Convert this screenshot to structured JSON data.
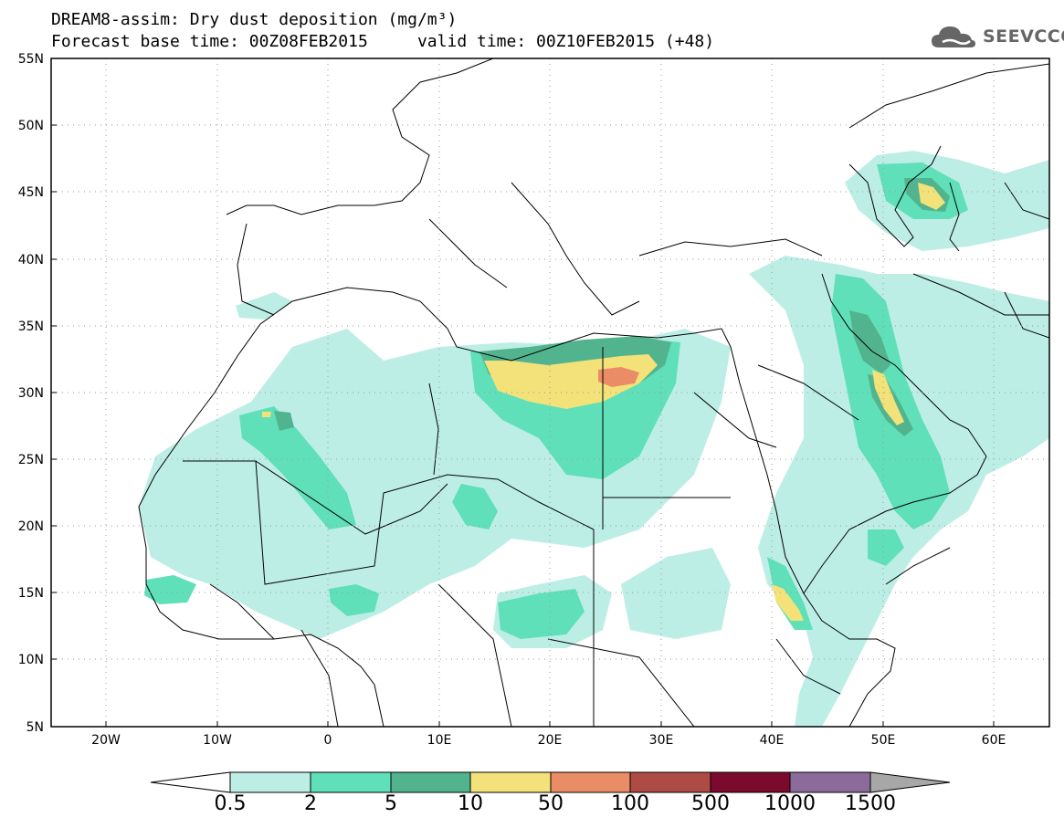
{
  "header": {
    "title_line1": "DREAM8-assim: Dry dust deposition (mg/m³)",
    "title_line2": "Forecast base time: 00Z08FEB2015     valid time: 00Z10FEB2015 (+48)"
  },
  "logo": {
    "text": "SEEVCCC",
    "icon": "cloud-icon"
  },
  "map": {
    "lat_labels": [
      "55N",
      "50N",
      "45N",
      "40N",
      "35N",
      "30N",
      "25N",
      "20N",
      "15N",
      "10N",
      "5N"
    ],
    "lon_labels": [
      "20W",
      "10W",
      "0",
      "10E",
      "20E",
      "30E",
      "40E",
      "50E",
      "60E"
    ]
  },
  "colorbar": {
    "labels": [
      "0.5",
      "2",
      "5",
      "10",
      "50",
      "100",
      "500",
      "1000",
      "1500"
    ],
    "colors": [
      "#ffffff",
      "#bdeee6",
      "#5fe0b8",
      "#52b48e",
      "#f2e279",
      "#ea8d67",
      "#ae4b44",
      "#7c0a2e",
      "#8b6b9a",
      "#a7a7a7"
    ]
  }
}
